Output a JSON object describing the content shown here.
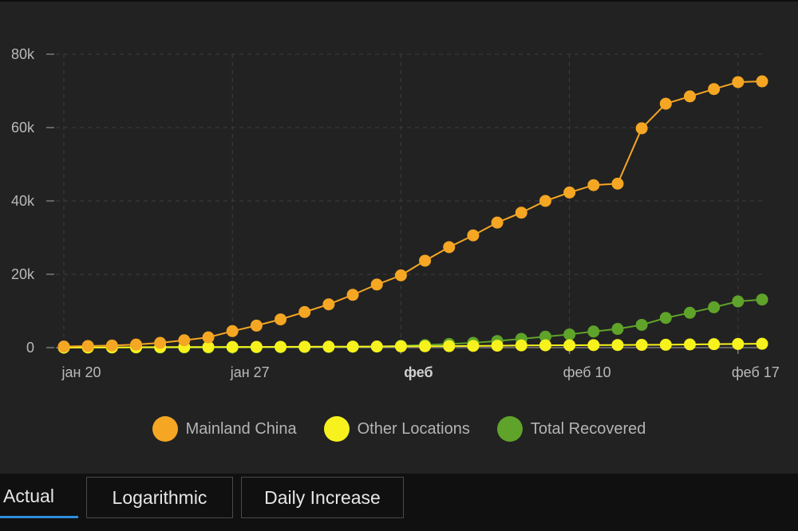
{
  "chart_data": {
    "type": "line",
    "x": [
      "jan 20",
      "jan 21",
      "jan 22",
      "jan 23",
      "jan 24",
      "jan 25",
      "jan 26",
      "jan 27",
      "jan 28",
      "jan 29",
      "jan 30",
      "jan 31",
      "feb 1",
      "feb 2",
      "feb 3",
      "feb 4",
      "feb 5",
      "feb 6",
      "feb 7",
      "feb 8",
      "feb 9",
      "feb 10",
      "feb 11",
      "feb 12",
      "feb 13",
      "feb 14",
      "feb 15",
      "feb 16",
      "feb 17",
      "feb 18"
    ],
    "x_tick_labels": [
      {
        "index": 0,
        "label": "јан 20",
        "bold": false
      },
      {
        "index": 7,
        "label": "јан 27",
        "bold": false
      },
      {
        "index": 14,
        "label": "феб",
        "bold": true
      },
      {
        "index": 21,
        "label": "феб 10",
        "bold": false
      },
      {
        "index": 28,
        "label": "феб 17",
        "bold": false
      }
    ],
    "y_ticks": [
      0,
      20000,
      40000,
      60000,
      80000
    ],
    "y_tick_labels": [
      "0",
      "20k",
      "40k",
      "60k",
      "80k"
    ],
    "ylim": [
      0,
      80000
    ],
    "grid": true,
    "series": [
      {
        "name": "Mainland China",
        "color": "#f5a623",
        "values": [
          300,
          440,
          570,
          830,
          1300,
          2000,
          2800,
          4500,
          6000,
          7700,
          9700,
          11800,
          14400,
          17200,
          19700,
          23700,
          27400,
          30600,
          34100,
          36800,
          40000,
          42300,
          44300,
          44700,
          59800,
          66500,
          68500,
          70500,
          72400,
          72600
        ]
      },
      {
        "name": "Other Locations",
        "color": "#f7f21d",
        "values": [
          10,
          30,
          60,
          100,
          130,
          150,
          170,
          190,
          200,
          220,
          240,
          260,
          280,
          300,
          340,
          370,
          400,
          470,
          520,
          600,
          630,
          650,
          690,
          720,
          750,
          780,
          870,
          940,
          1000,
          1050
        ]
      },
      {
        "name": "Total Recovered",
        "color": "#5fa32a",
        "values": [
          20,
          30,
          40,
          40,
          40,
          50,
          50,
          60,
          100,
          120,
          150,
          200,
          250,
          300,
          500,
          700,
          1000,
          1300,
          1800,
          2400,
          3000,
          3600,
          4400,
          5100,
          6200,
          8100,
          9500,
          11000,
          12600,
          13100
        ]
      }
    ],
    "legend_position": "bottom-center"
  },
  "tabs": [
    {
      "label": "Actual",
      "active": true
    },
    {
      "label": "Logarithmic",
      "active": false
    },
    {
      "label": "Daily Increase",
      "active": false
    }
  ]
}
